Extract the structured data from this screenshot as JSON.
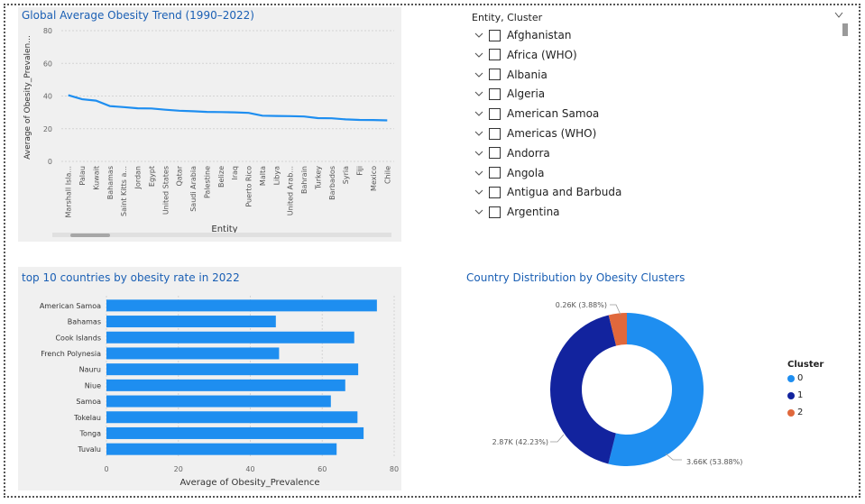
{
  "line_chart": {
    "title": "Global Average Obesity Trend (1990–2022)",
    "ylabel": "Average of Obesity_Prevalen...",
    "xlabel": "Entity"
  },
  "bar_chart": {
    "title": "top 10 countries by obesity rate in 2022",
    "xlabel": "Average of Obesity_Prevalence"
  },
  "donut_chart": {
    "title": "Country Distribution by Obesity Clusters",
    "legend_title": "Cluster",
    "slice_labels": [
      "3.66K (53.88%)",
      "2.87K (42.23%)",
      "0.26K (3.88%)"
    ]
  },
  "slicer": {
    "title": "Entity, Cluster",
    "items": [
      "Afghanistan",
      "Africa (WHO)",
      "Albania",
      "Algeria",
      "American Samoa",
      "Americas (WHO)",
      "Andorra",
      "Angola",
      "Antigua and Barbuda",
      "Argentina"
    ]
  },
  "colors": {
    "bar": "#1e8ef0",
    "line": "#1e8ef0",
    "cluster0": "#1e8ef0",
    "cluster1": "#12239e",
    "cluster2": "#e0683c",
    "title": "#1a5fb4"
  },
  "chart_data": [
    {
      "type": "line",
      "title": "Global Average Obesity Trend (1990–2022)",
      "xlabel": "Entity",
      "ylabel": "Average of Obesity_Prevalen...",
      "ylim": [
        0,
        80
      ],
      "yticks": [
        0,
        20,
        40,
        60,
        80
      ],
      "categories": [
        "Marshall Isla...",
        "Palau",
        "Kuwait",
        "Bahamas",
        "Saint Kitts a...",
        "Jordan",
        "Egypt",
        "United States",
        "Qatar",
        "Saudi Arabia",
        "Palestine",
        "Belize",
        "Iraq",
        "Puerto Rico",
        "Malta",
        "Libya",
        "United Arab...",
        "Bahrain",
        "Turkey",
        "Barbados",
        "Syria",
        "Fiji",
        "Mexico",
        "Chile"
      ],
      "values": [
        40.5,
        38.0,
        37.2,
        33.8,
        33.2,
        32.5,
        32.4,
        31.6,
        31.0,
        30.7,
        30.3,
        30.2,
        30.0,
        29.7,
        28.0,
        27.8,
        27.7,
        27.5,
        26.5,
        26.4,
        25.7,
        25.4,
        25.3,
        25.1
      ],
      "grid": true
    },
    {
      "type": "bar",
      "orientation": "horizontal",
      "title": "top 10 countries by obesity rate in 2022",
      "xlabel": "Average of Obesity_Prevalence",
      "xlim": [
        0,
        80
      ],
      "xticks": [
        0,
        20,
        40,
        60,
        80
      ],
      "categories": [
        "American Samoa",
        "Bahamas",
        "Cook Islands",
        "French Polynesia",
        "Nauru",
        "Niue",
        "Samoa",
        "Tokelau",
        "Tonga",
        "Tuvalu"
      ],
      "values": [
        75.2,
        47.1,
        68.9,
        48.0,
        70.0,
        66.4,
        62.4,
        69.8,
        71.5,
        64.0
      ]
    },
    {
      "type": "pie",
      "donut": true,
      "title": "Country Distribution by Obesity Clusters",
      "legend_title": "Cluster",
      "legend_position": "right",
      "series": [
        {
          "name": "0",
          "value": 3.66,
          "label": "3.66K (53.88%)"
        },
        {
          "name": "1",
          "value": 2.87,
          "label": "2.87K (42.23%)"
        },
        {
          "name": "2",
          "value": 0.26,
          "label": "0.26K (3.88%)"
        }
      ],
      "percentages": [
        53.88,
        42.23,
        3.88
      ]
    }
  ]
}
